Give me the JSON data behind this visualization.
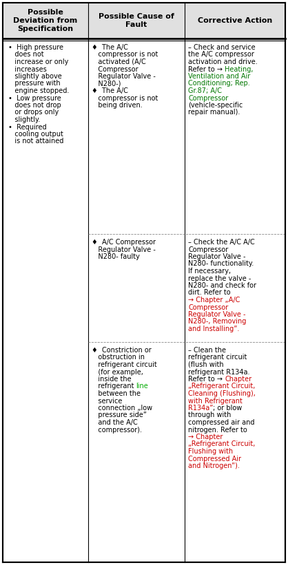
{
  "bg_color": "#ffffff",
  "header_bg": "#e8e8e8",
  "col_headers": [
    "Possible\nDeviation from\nSpecification",
    "Possible Cause of\nFault",
    "Corrective Action"
  ],
  "col1_lines": [
    "•  High pressure",
    "   does not",
    "   increase or only",
    "   increases",
    "   slightly above",
    "   pressure with",
    "   engine stopped.",
    "•  Low pressure",
    "   does not drop",
    "   or drops only",
    "   slightly.",
    "•  Required",
    "   cooling output",
    "   is not attained"
  ],
  "col2_s1_lines": [
    "♦  The A/C",
    "   compressor is not",
    "   activated (A/C",
    "   Compressor",
    "   Regulator Valve -",
    "   N280-)",
    "♦  The A/C",
    "   compressor is not",
    "   being driven."
  ],
  "col2_s2_lines": [
    "♦  A/C Compressor",
    "   Regulator Valve -",
    "   N280- faulty"
  ],
  "col2_s3_lines": [
    [
      "♦  Constriction or",
      "#000000"
    ],
    [
      "   obstruction in",
      "#000000"
    ],
    [
      "   refrigerant circuit",
      "#000000"
    ],
    [
      "   (for example,",
      "#000000"
    ],
    [
      "   inside the",
      "#000000"
    ],
    [
      "   refrigerant ",
      "#000000",
      "line",
      "#00aa00"
    ],
    [
      "   between the",
      "#000000"
    ],
    [
      "   service",
      "#000000"
    ],
    [
      "   connection „low",
      "#000000"
    ],
    [
      "   pressure side”",
      "#000000"
    ],
    [
      "   and the A/C",
      "#000000"
    ],
    [
      "   compressor).",
      "#000000"
    ]
  ],
  "col3_s1_lines": [
    [
      [
        "– ",
        "#000000"
      ],
      [
        "Check and service",
        "#000000"
      ]
    ],
    [
      [
        "the A/C compressor",
        "#000000"
      ]
    ],
    [
      [
        "activation and drive.",
        "#000000"
      ]
    ],
    [
      [
        "Refer to → ",
        "#000000"
      ],
      [
        "Heating,",
        "#007700"
      ]
    ],
    [
      [
        "Ventilation and Air",
        "#007700"
      ]
    ],
    [
      [
        "Conditioning; Rep.",
        "#007700"
      ]
    ],
    [
      [
        "Gr.87; A/C",
        "#007700"
      ]
    ],
    [
      [
        "Compressor",
        "#007700"
      ]
    ],
    [
      [
        "(vehicle-specific",
        "#000000"
      ]
    ],
    [
      [
        "repair manual).",
        "#000000"
      ]
    ]
  ],
  "col3_s2_lines": [
    [
      [
        "– ",
        "#000000"
      ],
      [
        "Check the A/C A/C",
        "#000000"
      ]
    ],
    [
      [
        "Compressor",
        "#000000"
      ]
    ],
    [
      [
        "Regulator Valve -",
        "#000000"
      ]
    ],
    [
      [
        "N280- functionality.",
        "#000000"
      ]
    ],
    [
      [
        "If necessary,",
        "#000000"
      ]
    ],
    [
      [
        "replace the valve -",
        "#000000"
      ]
    ],
    [
      [
        "N280- and check for",
        "#000000"
      ]
    ],
    [
      [
        "dirt. Refer to",
        "#000000"
      ]
    ],
    [
      [
        "→ Chapter „A/C",
        "#cc0000"
      ]
    ],
    [
      [
        "Compressor",
        "#cc0000"
      ]
    ],
    [
      [
        "Regulator Valve -",
        "#cc0000"
      ]
    ],
    [
      [
        "N280-, Removing",
        "#cc0000"
      ]
    ],
    [
      [
        "and Installing”.",
        "#cc0000"
      ]
    ]
  ],
  "col3_s3_lines": [
    [
      [
        "– ",
        "#000000"
      ],
      [
        "Clean the",
        "#000000"
      ]
    ],
    [
      [
        "refrigerant circuit",
        "#000000"
      ]
    ],
    [
      [
        "(flush with",
        "#000000"
      ]
    ],
    [
      [
        "refrigerant R134a.",
        "#000000"
      ]
    ],
    [
      [
        "Refer to → ",
        "#000000"
      ],
      [
        "Chapter",
        "#cc0000"
      ]
    ],
    [
      [
        "„Refrigerant Circuit,",
        "#cc0000"
      ]
    ],
    [
      [
        "Cleaning (Flushing),",
        "#cc0000"
      ]
    ],
    [
      [
        "with Refrigerant",
        "#cc0000"
      ]
    ],
    [
      [
        "R134a”",
        "#cc0000"
      ],
      [
        "; or blow",
        "#000000"
      ]
    ],
    [
      [
        "through with",
        "#000000"
      ]
    ],
    [
      [
        "compressed air and",
        "#000000"
      ]
    ],
    [
      [
        "nitrogen. Refer to",
        "#000000"
      ]
    ],
    [
      [
        "→ Chapter",
        "#cc0000"
      ]
    ],
    [
      [
        "„Refrigerant Circuit,",
        "#cc0000"
      ]
    ],
    [
      [
        "Flushing with",
        "#cc0000"
      ]
    ],
    [
      [
        "Compressed Air",
        "#cc0000"
      ]
    ],
    [
      [
        "and Nitrogen”).",
        "#cc0000"
      ]
    ]
  ]
}
